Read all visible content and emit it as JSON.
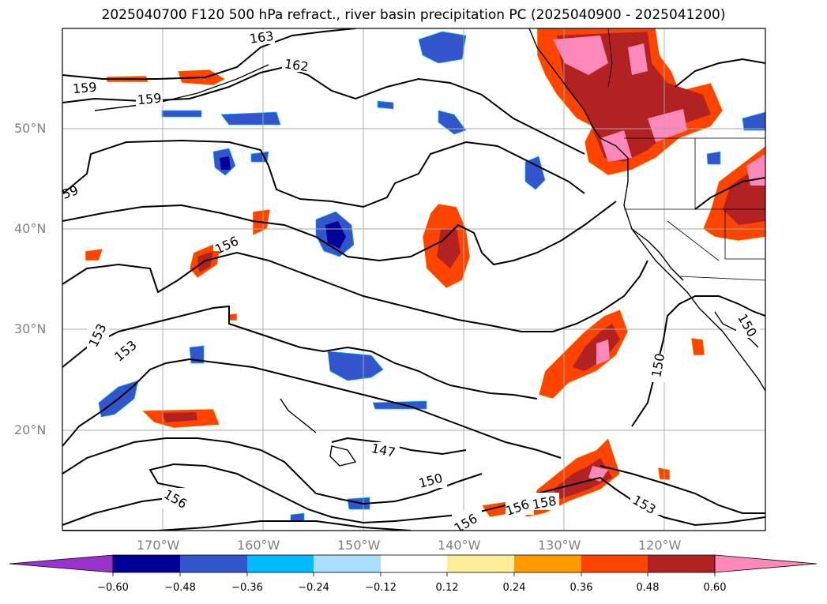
{
  "title": "2025040700 F120 500 hPa refract., river basin precipitation PC (2025040900 - 2025041200)",
  "map": {
    "lat_labels": [
      "50°N",
      "40°N",
      "30°N",
      "20°N"
    ],
    "lon_labels": [
      "170°W",
      "160°W",
      "150°W",
      "140°W",
      "130°W",
      "120°W"
    ],
    "contour_labels": [
      "163",
      "162",
      "159",
      "159",
      "59",
      "156",
      "153",
      "153",
      "150",
      "150",
      "150",
      "147",
      "156",
      "156",
      "156",
      "158",
      "153"
    ]
  },
  "colorbar": {
    "ticks": [
      "−0.60",
      "−0.48",
      "−0.36",
      "−0.24",
      "−0.12",
      "0.12",
      "0.24",
      "0.36",
      "0.48",
      "0.60"
    ],
    "colors": [
      "#9933cc",
      "#000099",
      "#3355cc",
      "#00bbff",
      "#aaddff",
      "#ffffff",
      "#ffee99",
      "#ff9900",
      "#ff4400",
      "#b22222",
      "#ff88bb"
    ]
  }
}
